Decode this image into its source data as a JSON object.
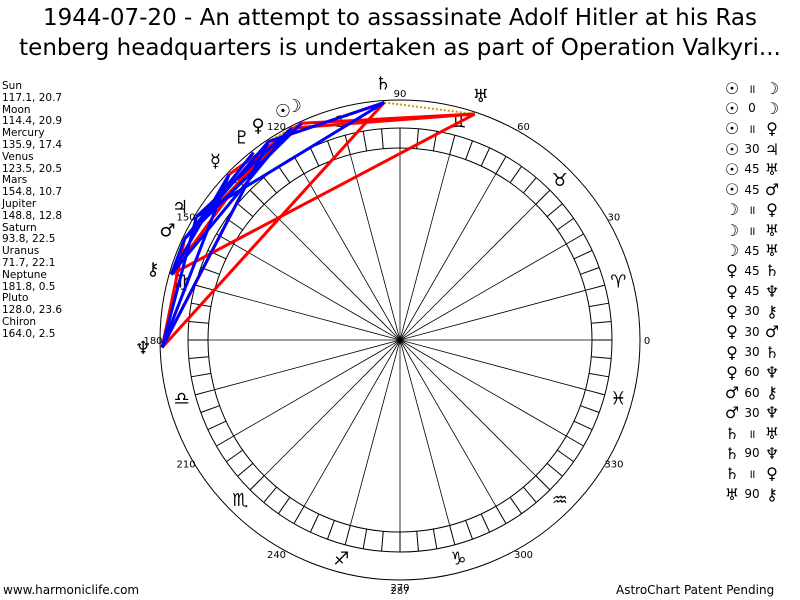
{
  "title": {
    "line1": "1944-07-20 - An attempt to assassinate Adolf Hitler at his Ras",
    "line2": "tenberg headquarters is undertaken as part of Operation Valkyri..."
  },
  "planets": [
    {
      "name": "Sun",
      "glyph": "☉",
      "value": "117.1, 20.7",
      "lon": 117.1
    },
    {
      "name": "Moon",
      "glyph": "☽",
      "value": "114.4, 20.9",
      "lon": 114.4
    },
    {
      "name": "Mercury",
      "glyph": "☿",
      "value": "135.9, 17.4",
      "lon": 135.9
    },
    {
      "name": "Venus",
      "glyph": "♀",
      "value": "123.5, 20.5",
      "lon": 123.5
    },
    {
      "name": "Mars",
      "glyph": "♂",
      "value": "154.8, 10.7",
      "lon": 154.8
    },
    {
      "name": "Jupiter",
      "glyph": "♃",
      "value": "148.8, 12.8",
      "lon": 148.8
    },
    {
      "name": "Saturn",
      "glyph": "♄",
      "value": "93.8, 22.5",
      "lon": 93.8
    },
    {
      "name": "Uranus",
      "glyph": "♅",
      "value": "71.7, 22.1",
      "lon": 71.7
    },
    {
      "name": "Neptune",
      "glyph": "♆",
      "value": "181.8, 0.5",
      "lon": 181.8
    },
    {
      "name": "Pluto",
      "glyph": "♇",
      "value": "128.0, 23.6",
      "lon": 128.0
    },
    {
      "name": "Chiron",
      "glyph": "⚷",
      "value": "164.0, 2.5",
      "lon": 164.0
    }
  ],
  "aspects": [
    {
      "g1": "☉",
      "asp": "॥",
      "g2": "☽"
    },
    {
      "g1": "☉",
      "asp": "0",
      "g2": "☽"
    },
    {
      "g1": "☉",
      "asp": "॥",
      "g2": "♀"
    },
    {
      "g1": "☉",
      "asp": "30",
      "g2": "♃"
    },
    {
      "g1": "☉",
      "asp": "45",
      "g2": "♅"
    },
    {
      "g1": "☉",
      "asp": "45",
      "g2": "♂"
    },
    {
      "g1": "☽",
      "asp": "॥",
      "g2": "♀"
    },
    {
      "g1": "☽",
      "asp": "॥",
      "g2": "♅"
    },
    {
      "g1": "☽",
      "asp": "45",
      "g2": "♅"
    },
    {
      "g1": "♀",
      "asp": "45",
      "g2": "♄"
    },
    {
      "g1": "♀",
      "asp": "45",
      "g2": "♆"
    },
    {
      "g1": "♀",
      "asp": "30",
      "g2": "⚷"
    },
    {
      "g1": "♀",
      "asp": "30",
      "g2": "♂"
    },
    {
      "g1": "♀",
      "asp": "30",
      "g2": "♄"
    },
    {
      "g1": "♀",
      "asp": "60",
      "g2": "♆"
    },
    {
      "g1": "♂",
      "asp": "60",
      "g2": "⚷"
    },
    {
      "g1": "♂",
      "asp": "30",
      "g2": "♆"
    },
    {
      "g1": "♄",
      "asp": "॥",
      "g2": "♅"
    },
    {
      "g1": "♄",
      "asp": "90",
      "g2": "♆"
    },
    {
      "g1": "♄",
      "asp": "॥",
      "g2": "♀"
    },
    {
      "g1": "♅",
      "asp": "90",
      "g2": "⚷"
    }
  ],
  "wheel": {
    "degree_labels": [
      "0",
      "30",
      "60",
      "90",
      "120",
      "150",
      "180",
      "210",
      "240",
      "270",
      "300",
      "330"
    ],
    "bottom_number": "287",
    "signs": [
      "♈",
      "♉",
      "♊",
      "♋",
      "♌",
      "♍",
      "♎",
      "♏",
      "♐",
      "♑",
      "♒",
      "♓"
    ],
    "aspect_colors": {
      "hard": "#ff0000",
      "soft": "#0000ff",
      "parallel": "#cc9900"
    },
    "aspect_lines": [
      {
        "a": 117.1,
        "b": 114.4,
        "type": "parallel"
      },
      {
        "a": 117.1,
        "b": 123.5,
        "type": "parallel"
      },
      {
        "a": 114.4,
        "b": 123.5,
        "type": "parallel"
      },
      {
        "a": 114.4,
        "b": 71.7,
        "type": "parallel"
      },
      {
        "a": 93.8,
        "b": 71.7,
        "type": "parallel"
      },
      {
        "a": 93.8,
        "b": 123.5,
        "type": "parallel"
      },
      {
        "a": 117.1,
        "b": 71.7,
        "type": "hard"
      },
      {
        "a": 114.4,
        "b": 71.7,
        "type": "hard"
      },
      {
        "a": 117.1,
        "b": 154.8,
        "type": "hard"
      },
      {
        "a": 123.5,
        "b": 93.8,
        "type": "hard"
      },
      {
        "a": 123.5,
        "b": 181.8,
        "type": "hard"
      },
      {
        "a": 93.8,
        "b": 181.8,
        "type": "hard"
      },
      {
        "a": 71.7,
        "b": 164.0,
        "type": "hard"
      },
      {
        "a": 154.8,
        "b": 181.8,
        "type": "hard"
      },
      {
        "a": 123.5,
        "b": 164.0,
        "type": "hard"
      },
      {
        "a": 114.4,
        "b": 135.9,
        "type": "hard"
      },
      {
        "a": 117.1,
        "b": 148.8,
        "type": "soft"
      },
      {
        "a": 123.5,
        "b": 154.8,
        "type": "soft"
      },
      {
        "a": 123.5,
        "b": 93.8,
        "type": "soft"
      },
      {
        "a": 154.8,
        "b": 164.0,
        "type": "soft"
      },
      {
        "a": 123.5,
        "b": 181.8,
        "type": "soft"
      },
      {
        "a": 135.9,
        "b": 164.0,
        "type": "soft"
      },
      {
        "a": 135.9,
        "b": 181.8,
        "type": "soft"
      },
      {
        "a": 128.0,
        "b": 154.8,
        "type": "soft"
      },
      {
        "a": 114.4,
        "b": 154.8,
        "type": "soft"
      },
      {
        "a": 93.8,
        "b": 148.8,
        "type": "soft"
      },
      {
        "a": 148.8,
        "b": 181.8,
        "type": "soft"
      },
      {
        "a": 117.1,
        "b": 164.0,
        "type": "soft"
      }
    ]
  },
  "footer": {
    "left": "www.harmoniclife.com",
    "right": "AstroChart Patent Pending"
  }
}
